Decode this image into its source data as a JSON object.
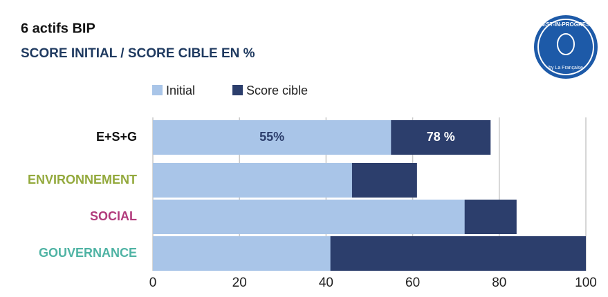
{
  "chart_data": {
    "type": "bar",
    "orientation": "horizontal",
    "title": "6 actifs BIP",
    "subtitle": "SCORE INITIAL / SCORE CIBLE EN %",
    "logo": {
      "title": "BEST-IN-PROGRESS",
      "subtitle": "by La Française"
    },
    "categories": [
      "E+S+G",
      "ENVIRONNEMENT",
      "SOCIAL",
      "GOUVERNANCE"
    ],
    "category_colors": [
      "#111111",
      "#93a93c",
      "#b23b7c",
      "#4fb3a4"
    ],
    "series": [
      {
        "name": "Initial",
        "color": "#a9c5e8",
        "values": [
          55,
          46,
          72,
          41
        ],
        "value_labels": [
          "55%",
          null,
          null,
          null
        ]
      },
      {
        "name": "Score cible",
        "color": "#2c3e6c",
        "values": [
          78,
          61,
          84,
          100
        ],
        "value_labels": [
          "78 %",
          null,
          null,
          null
        ]
      }
    ],
    "xlim": [
      0,
      100
    ],
    "xticks": [
      0,
      20,
      40,
      60,
      80,
      100
    ],
    "grid": true,
    "legend": "top"
  }
}
